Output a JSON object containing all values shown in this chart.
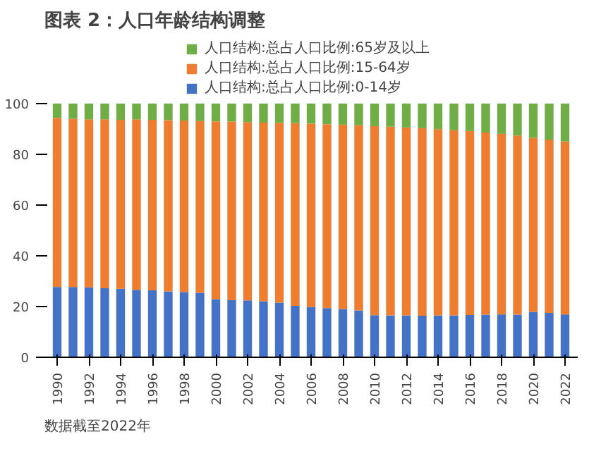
{
  "chart_data": {
    "type": "bar",
    "stacked": true,
    "title": "图表 2：人口年龄结构调整",
    "categories": [
      "1990",
      null,
      "1992",
      null,
      "1994",
      null,
      "1996",
      null,
      "1998",
      null,
      "2000",
      null,
      "2002",
      null,
      "2004",
      null,
      "2006",
      null,
      "2008",
      null,
      "2010",
      null,
      "2012",
      null,
      "2014",
      null,
      "2016",
      null,
      "2018",
      null,
      "2020",
      null,
      "2022"
    ],
    "series": [
      {
        "name": "人口结构:总占人口比例:0-14岁",
        "color": "#4472c4",
        "values": [
          27.7,
          27.7,
          27.6,
          27.2,
          27.0,
          26.6,
          26.4,
          26.0,
          25.7,
          25.4,
          22.9,
          22.5,
          22.4,
          22.1,
          21.5,
          20.3,
          19.8,
          19.4,
          19.0,
          18.5,
          16.6,
          16.5,
          16.5,
          16.4,
          16.5,
          16.5,
          16.7,
          16.8,
          16.9,
          16.8,
          17.9,
          17.5,
          16.9
        ]
      },
      {
        "name": "人口结构:总占人口比例:15-64岁",
        "color": "#ed7d31",
        "values": [
          66.7,
          66.3,
          66.2,
          66.6,
          66.6,
          67.2,
          67.2,
          67.5,
          67.6,
          67.7,
          70.1,
          70.4,
          70.3,
          70.4,
          70.9,
          72.0,
          72.3,
          72.5,
          72.7,
          73.0,
          74.5,
          74.4,
          74.1,
          73.9,
          73.4,
          73.0,
          72.5,
          71.8,
          71.2,
          70.6,
          68.6,
          68.3,
          68.2
        ]
      },
      {
        "name": "人口结构:总占人口比例:65岁及以上",
        "color": "#70ad47",
        "values": [
          5.6,
          6.0,
          6.2,
          6.2,
          6.4,
          6.2,
          6.4,
          6.5,
          6.7,
          6.9,
          7.0,
          7.1,
          7.3,
          7.5,
          7.6,
          7.7,
          7.9,
          8.1,
          8.3,
          8.5,
          8.9,
          9.1,
          9.4,
          9.7,
          10.1,
          10.5,
          10.8,
          11.4,
          11.9,
          12.6,
          13.5,
          14.2,
          14.9
        ]
      }
    ],
    "ylim": [
      0,
      100
    ],
    "yticks": [
      0,
      20,
      40,
      60,
      80,
      100
    ],
    "grid": false,
    "legend": "top",
    "annotations": [
      "数据截至2022年"
    ]
  }
}
